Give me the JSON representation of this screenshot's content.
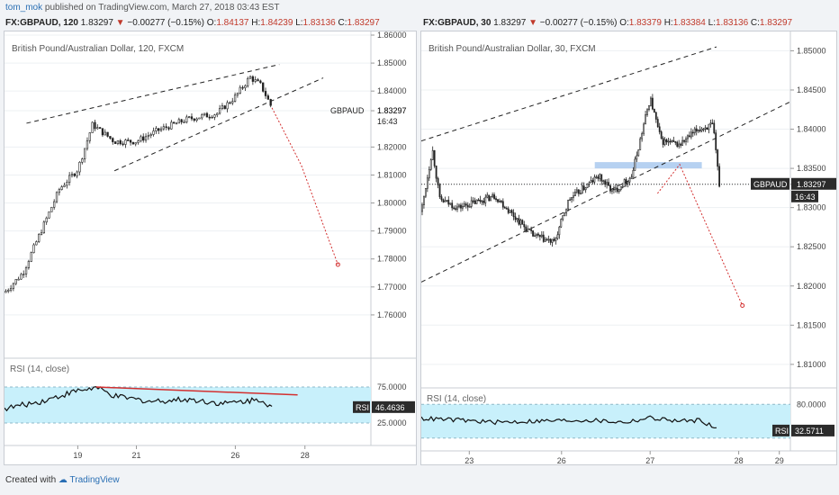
{
  "meta": {
    "author": "tom_mok",
    "published_text": "published on TradingView.com, March 27, 2018 03:43 EST",
    "created_with": "Created with",
    "brand": "TradingView"
  },
  "colors": {
    "up": "#000000",
    "down": "#000000",
    "grid": "#e9ecef",
    "rsi_fill": "#c8f0fb",
    "trend": "#d32f2f",
    "zone": "#a9c9ee"
  },
  "chart_data": [
    {
      "type": "candlestick",
      "symbol_header": "FX:GBPAUD, 120",
      "last": "1.83297",
      "change": "−0.00277 (−0.15%)",
      "ohlc": {
        "O": "1.84137",
        "H": "1.84239",
        "L": "1.83136",
        "C": "1.83297"
      },
      "title": "British Pound/Australian Dollar, 120, FXCM",
      "price_axis": {
        "min": 1.75,
        "max": 1.86,
        "ticks": [
          "1.86000",
          "1.85000",
          "1.84000",
          "1.83297",
          "1.82000",
          "1.81000",
          "1.80000",
          "1.79000",
          "1.78000",
          "1.77000",
          "1.76000"
        ]
      },
      "symbol_label": "GBPAUD",
      "countdown": "16:43",
      "x_ticks": [
        "19",
        "21",
        "26",
        "28"
      ],
      "rsi": {
        "label": "RSI (14, close)",
        "value": "46.4636",
        "levels": [
          "75.0000",
          "25.0000"
        ],
        "range": [
          0,
          100
        ],
        "badge": "RSI"
      },
      "channel": {
        "upper": [
          [
            0.06,
            1.8285
          ],
          [
            0.75,
            1.8495
          ]
        ],
        "lower": [
          [
            0.3,
            1.8115
          ],
          [
            0.87,
            1.8447
          ]
        ]
      },
      "arrow": [
        [
          0.73,
          1.834
        ],
        [
          0.81,
          1.8135
        ],
        [
          0.91,
          1.778
        ]
      ],
      "rsi_trend": [
        [
          0.25,
          75.0
        ],
        [
          0.8,
          64.0
        ]
      ]
    },
    {
      "type": "candlestick",
      "symbol_header": "FX:GBPAUD, 30",
      "last": "1.83297",
      "change": "−0.00277 (−0.15%)",
      "ohlc": {
        "O": "1.83379",
        "H": "1.83384",
        "L": "1.83136",
        "C": "1.83297"
      },
      "title": "British Pound/Australian Dollar, 30, FXCM",
      "price_axis": {
        "min": 1.807,
        "max": 1.852,
        "ticks": [
          "1.85000",
          "1.84500",
          "1.84000",
          "1.83500",
          "1.83297",
          "1.83000",
          "1.82500",
          "1.82000",
          "1.81500",
          "1.81000"
        ]
      },
      "symbol_label": "GBPAUD",
      "countdown": "16:43",
      "x_ticks": [
        "23",
        "26",
        "27",
        "28",
        "29"
      ],
      "rsi": {
        "label": "RSI (14, close)",
        "value": "32.5711",
        "levels": [
          "80.0000"
        ],
        "range": [
          10,
          90
        ],
        "badge": "RSI"
      },
      "channel": {
        "upper": [
          [
            0.0,
            1.8385
          ],
          [
            0.8,
            1.8505
          ]
        ],
        "lower": [
          [
            0.0,
            1.8205
          ],
          [
            1.0,
            1.8435
          ]
        ]
      },
      "zone": {
        "x": [
          0.47,
          0.76
        ],
        "y": [
          1.835,
          1.8358
        ]
      },
      "hline": 1.83297,
      "arrow": [
        [
          0.64,
          1.8318
        ],
        [
          0.7,
          1.8355
        ],
        [
          0.87,
          1.8175
        ]
      ]
    }
  ]
}
